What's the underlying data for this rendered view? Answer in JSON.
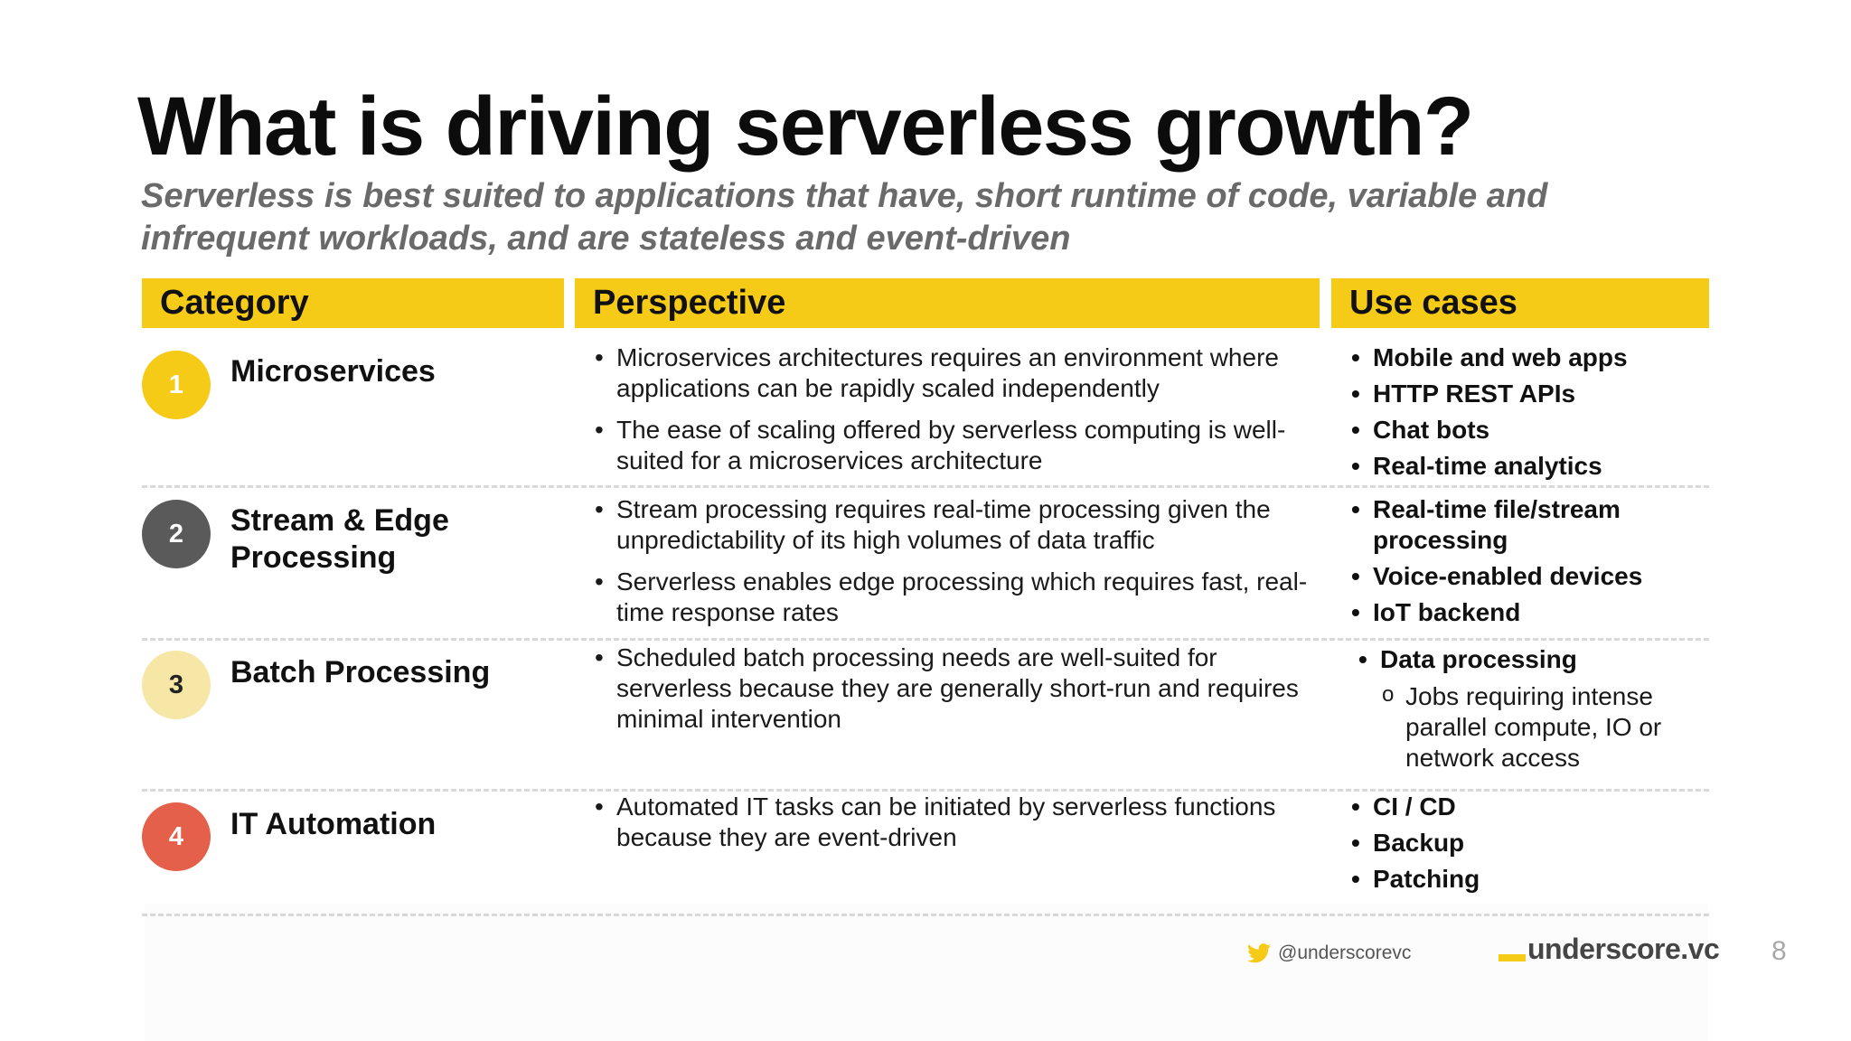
{
  "title": "What is driving serverless growth?",
  "subtitle": "Serverless is best suited to applications that have, short runtime of code, variable and infrequent workloads, and are stateless and event-driven",
  "headers": {
    "category": "Category",
    "perspective": "Perspective",
    "use_cases": "Use cases"
  },
  "colors": {
    "accent": "#f5cb17",
    "circle_1": "#f5cb17",
    "circle_2": "#5a5a5a",
    "circle_3": "#f6e7a6",
    "circle_4": "#e4604a"
  },
  "rows": [
    {
      "number": "1",
      "category": "Microservices",
      "perspective": [
        "Microservices architectures requires an environment where applications can be rapidly scaled independently",
        "The ease of scaling offered by serverless computing is well-suited for a microservices architecture"
      ],
      "use_cases": [
        "Mobile and web apps",
        "HTTP REST APIs",
        "Chat bots",
        "Real-time analytics"
      ]
    },
    {
      "number": "2",
      "category": "Stream & Edge Processing",
      "perspective": [
        "Stream processing requires real-time processing given the unpredictability of its high volumes of data traffic",
        "Serverless enables edge processing which requires fast, real-time response rates"
      ],
      "use_cases": [
        "Real-time file/stream processing",
        "Voice-enabled devices",
        "IoT backend"
      ]
    },
    {
      "number": "3",
      "category": "Batch Processing",
      "perspective": [
        "Scheduled batch processing needs are well-suited for serverless because they are generally short-run and requires minimal intervention"
      ],
      "use_cases": [
        "Data processing"
      ],
      "use_case_sub": [
        "Jobs requiring intense parallel compute, IO or network access"
      ]
    },
    {
      "number": "4",
      "category": "IT Automation",
      "perspective": [
        "Automated IT tasks can be initiated by serverless functions because they are event-driven"
      ],
      "use_cases": [
        "CI / CD",
        "Backup",
        "Patching"
      ]
    }
  ],
  "footer": {
    "twitter_icon": "twitter-bird-icon",
    "twitter_handle": "@underscorevc",
    "brand": "underscore.vc",
    "page_number": "8"
  }
}
